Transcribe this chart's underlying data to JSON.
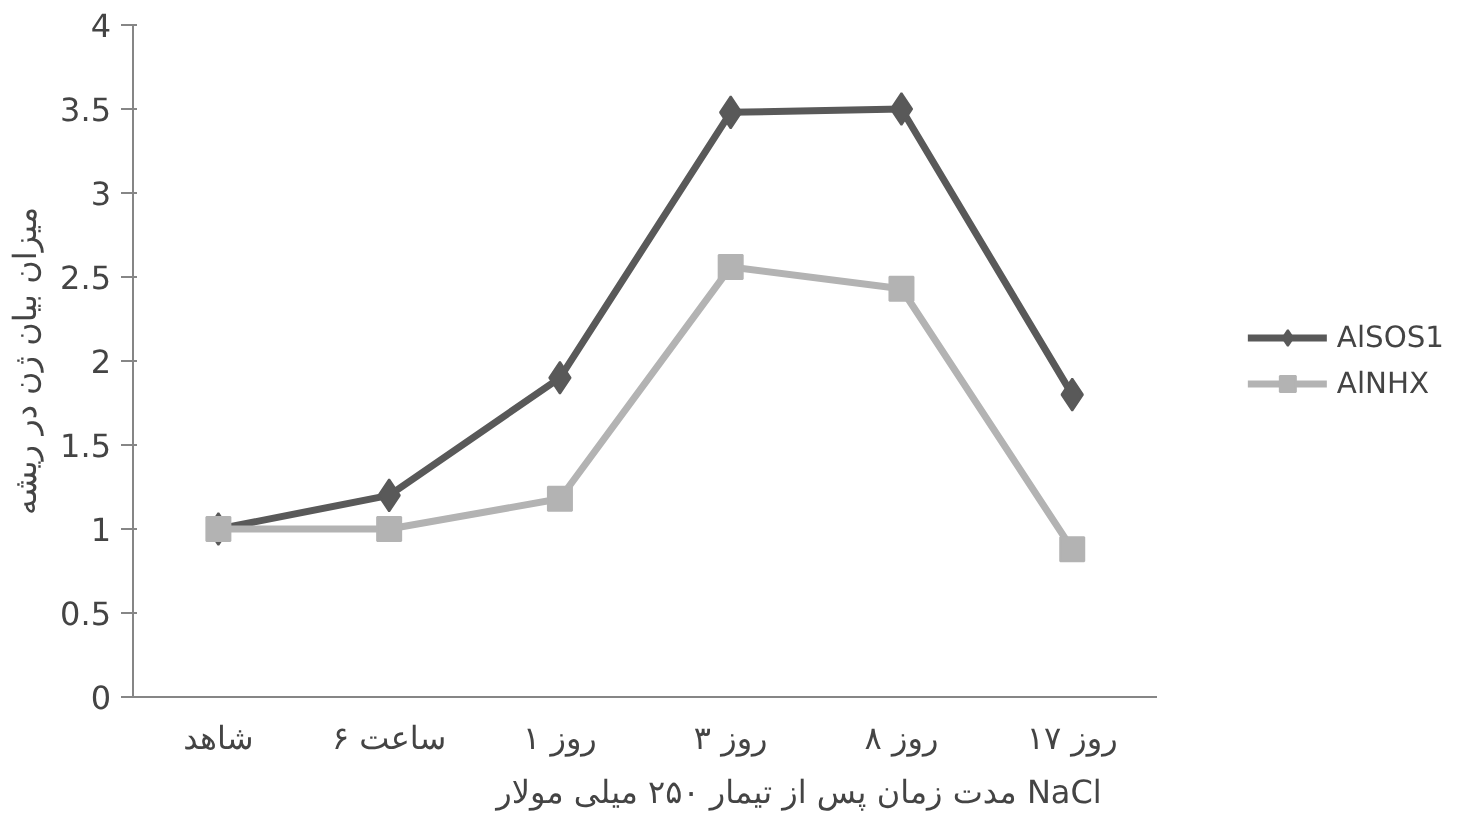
{
  "chart_data": {
    "type": "line",
    "xlabel": "مدت زمان پس از تیمار ۲۵۰ میلی مولار NaCl",
    "ylabel": "میزان بیان ژن در ریشه",
    "categories": [
      "شاهد",
      "۶ ساعت",
      "۱ روز",
      "۳ روز",
      "۸ روز",
      "۱۷ روز"
    ],
    "series": [
      {
        "name": "AlSOS1",
        "color": "#595959",
        "marker": "diamond",
        "values": [
          1,
          1.2,
          1.9,
          3.48,
          3.5,
          1.8
        ]
      },
      {
        "name": "AlNHX",
        "color": "#b3b3b3",
        "marker": "square",
        "values": [
          1,
          1,
          1.18,
          2.56,
          2.43,
          0.88
        ]
      }
    ],
    "ylim": [
      0,
      4
    ],
    "yticks": [
      0,
      0.5,
      1,
      1.5,
      2,
      2.5,
      3,
      3.5,
      4
    ],
    "grid": false,
    "legend": "right"
  }
}
